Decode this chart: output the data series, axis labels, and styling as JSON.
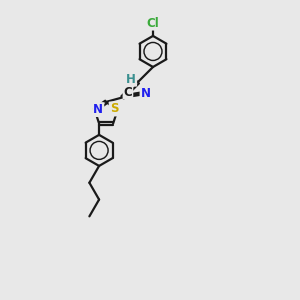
{
  "background_color": "#e8e8e8",
  "bond_color": "#1a1a1a",
  "bond_width": 1.6,
  "dbo": 0.055,
  "R_hex": 0.52,
  "R5": 0.4,
  "atom_labels": {
    "Cl": {
      "color": "#3aaa3a",
      "fontsize": 8.5
    },
    "H": {
      "color": "#3a9090",
      "fontsize": 8.5
    },
    "C": {
      "color": "#1a1a1a",
      "fontsize": 8.5
    },
    "N_cn": {
      "color": "#2020ee",
      "fontsize": 8.5
    },
    "S": {
      "color": "#ccaa00",
      "fontsize": 8.5
    },
    "N_tz": {
      "color": "#2020ee",
      "fontsize": 8.5
    }
  },
  "xlim": [
    2.8,
    7.2
  ],
  "ylim": [
    0.5,
    10.5
  ]
}
